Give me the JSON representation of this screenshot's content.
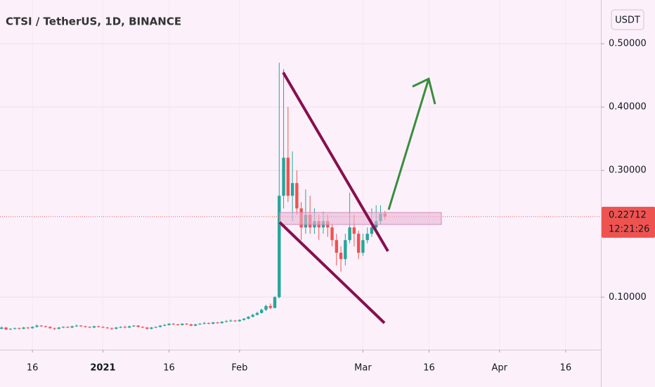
{
  "chart_data": {
    "type": "candlestick",
    "title": "CTSI / TetherUS, 1D, BINANCE",
    "currency": "USDT",
    "up_color": "#26a69a",
    "down_color": "#ef5350",
    "x": [
      "2020-12-09",
      "2020-12-10",
      "2020-12-11",
      "2020-12-12",
      "2020-12-13",
      "2020-12-14",
      "2020-12-15",
      "2020-12-16",
      "2020-12-17",
      "2020-12-18",
      "2020-12-19",
      "2020-12-20",
      "2020-12-21",
      "2020-12-22",
      "2020-12-23",
      "2020-12-24",
      "2020-12-25",
      "2020-12-26",
      "2020-12-27",
      "2020-12-28",
      "2020-12-29",
      "2020-12-30",
      "2020-12-31",
      "2021-01-01",
      "2021-01-02",
      "2021-01-03",
      "2021-01-04",
      "2021-01-05",
      "2021-01-06",
      "2021-01-07",
      "2021-01-08",
      "2021-01-09",
      "2021-01-10",
      "2021-01-11",
      "2021-01-12",
      "2021-01-13",
      "2021-01-14",
      "2021-01-15",
      "2021-01-16",
      "2021-01-17",
      "2021-01-18",
      "2021-01-19",
      "2021-01-20",
      "2021-01-21",
      "2021-01-22",
      "2021-01-23",
      "2021-01-24",
      "2021-01-25",
      "2021-01-26",
      "2021-01-27",
      "2021-01-28",
      "2021-01-29",
      "2021-01-30",
      "2021-01-31",
      "2021-02-01",
      "2021-02-02",
      "2021-02-03",
      "2021-02-04",
      "2021-02-05",
      "2021-02-06",
      "2021-02-07",
      "2021-02-08",
      "2021-02-09",
      "2021-02-10",
      "2021-02-11",
      "2021-02-12",
      "2021-02-13",
      "2021-02-14",
      "2021-02-15",
      "2021-02-16",
      "2021-02-17",
      "2021-02-18",
      "2021-02-19",
      "2021-02-20",
      "2021-02-21",
      "2021-02-22",
      "2021-02-23",
      "2021-02-24",
      "2021-02-25",
      "2021-02-26",
      "2021-02-27",
      "2021-02-28",
      "2021-03-01",
      "2021-03-02",
      "2021-03-03",
      "2021-03-04",
      "2021-03-05",
      "2021-03-06"
    ],
    "open": [
      0.05,
      0.052,
      0.049,
      0.05,
      0.051,
      0.05,
      0.052,
      0.051,
      0.053,
      0.055,
      0.054,
      0.053,
      0.051,
      0.05,
      0.052,
      0.053,
      0.052,
      0.054,
      0.055,
      0.054,
      0.053,
      0.052,
      0.054,
      0.053,
      0.052,
      0.051,
      0.05,
      0.052,
      0.053,
      0.052,
      0.054,
      0.055,
      0.053,
      0.052,
      0.05,
      0.052,
      0.053,
      0.055,
      0.056,
      0.058,
      0.057,
      0.056,
      0.058,
      0.057,
      0.055,
      0.057,
      0.058,
      0.059,
      0.058,
      0.06,
      0.059,
      0.061,
      0.062,
      0.063,
      0.062,
      0.064,
      0.066,
      0.069,
      0.072,
      0.075,
      0.08,
      0.086,
      0.083,
      0.1,
      0.26,
      0.32,
      0.26,
      0.28,
      0.24,
      0.21,
      0.23,
      0.21,
      0.22,
      0.21,
      0.22,
      0.21,
      0.19,
      0.17,
      0.16,
      0.19,
      0.21,
      0.2,
      0.17,
      0.19,
      0.2,
      0.21,
      0.22,
      0.232
    ],
    "high": [
      0.054,
      0.053,
      0.051,
      0.052,
      0.052,
      0.053,
      0.053,
      0.054,
      0.057,
      0.056,
      0.055,
      0.054,
      0.052,
      0.053,
      0.054,
      0.054,
      0.055,
      0.057,
      0.056,
      0.055,
      0.054,
      0.055,
      0.055,
      0.054,
      0.053,
      0.052,
      0.053,
      0.054,
      0.055,
      0.055,
      0.056,
      0.056,
      0.054,
      0.053,
      0.053,
      0.054,
      0.056,
      0.058,
      0.059,
      0.059,
      0.058,
      0.059,
      0.059,
      0.058,
      0.058,
      0.059,
      0.061,
      0.06,
      0.061,
      0.061,
      0.062,
      0.064,
      0.065,
      0.064,
      0.065,
      0.067,
      0.07,
      0.074,
      0.077,
      0.082,
      0.088,
      0.09,
      0.102,
      0.47,
      0.46,
      0.4,
      0.33,
      0.3,
      0.25,
      0.27,
      0.26,
      0.24,
      0.23,
      0.235,
      0.23,
      0.215,
      0.2,
      0.18,
      0.2,
      0.265,
      0.23,
      0.205,
      0.2,
      0.21,
      0.24,
      0.245,
      0.245,
      0.236
    ],
    "low": [
      0.049,
      0.048,
      0.048,
      0.049,
      0.049,
      0.049,
      0.05,
      0.05,
      0.052,
      0.053,
      0.052,
      0.05,
      0.048,
      0.049,
      0.051,
      0.051,
      0.051,
      0.053,
      0.053,
      0.052,
      0.051,
      0.051,
      0.052,
      0.051,
      0.05,
      0.048,
      0.049,
      0.051,
      0.051,
      0.051,
      0.053,
      0.052,
      0.051,
      0.049,
      0.049,
      0.051,
      0.052,
      0.054,
      0.055,
      0.056,
      0.055,
      0.055,
      0.056,
      0.054,
      0.054,
      0.056,
      0.057,
      0.057,
      0.057,
      0.058,
      0.058,
      0.06,
      0.061,
      0.061,
      0.061,
      0.063,
      0.065,
      0.068,
      0.071,
      0.074,
      0.078,
      0.081,
      0.082,
      0.098,
      0.24,
      0.25,
      0.22,
      0.23,
      0.19,
      0.2,
      0.2,
      0.2,
      0.19,
      0.2,
      0.195,
      0.18,
      0.15,
      0.14,
      0.15,
      0.185,
      0.18,
      0.16,
      0.165,
      0.185,
      0.195,
      0.205,
      0.215,
      0.222
    ],
    "close": [
      0.052,
      0.049,
      0.05,
      0.051,
      0.05,
      0.052,
      0.051,
      0.053,
      0.055,
      0.054,
      0.053,
      0.051,
      0.05,
      0.052,
      0.053,
      0.052,
      0.054,
      0.055,
      0.054,
      0.053,
      0.052,
      0.054,
      0.053,
      0.052,
      0.051,
      0.05,
      0.052,
      0.053,
      0.052,
      0.054,
      0.055,
      0.053,
      0.052,
      0.05,
      0.052,
      0.053,
      0.055,
      0.056,
      0.058,
      0.057,
      0.056,
      0.058,
      0.057,
      0.055,
      0.057,
      0.058,
      0.059,
      0.058,
      0.06,
      0.059,
      0.061,
      0.062,
      0.063,
      0.062,
      0.064,
      0.066,
      0.069,
      0.072,
      0.075,
      0.08,
      0.086,
      0.083,
      0.1,
      0.26,
      0.32,
      0.26,
      0.28,
      0.24,
      0.21,
      0.23,
      0.21,
      0.22,
      0.21,
      0.22,
      0.21,
      0.19,
      0.17,
      0.16,
      0.19,
      0.21,
      0.2,
      0.17,
      0.19,
      0.2,
      0.21,
      0.22,
      0.232,
      0.22712
    ],
    "xlim": [
      "2020-12-08",
      "2021-04-24"
    ],
    "xticks": [
      {
        "value": "2020-12-16",
        "label": "16"
      },
      {
        "value": "2021-01-01",
        "label": "2021"
      },
      {
        "value": "2021-01-16",
        "label": "16"
      },
      {
        "value": "2021-02-01",
        "label": "Feb"
      },
      {
        "value": "2021-03-01",
        "label": "Mar"
      },
      {
        "value": "2021-03-16",
        "label": "16"
      },
      {
        "value": "2021-04-01",
        "label": "Apr"
      },
      {
        "value": "2021-04-16",
        "label": "16"
      }
    ],
    "ylim": [
      0.017,
      0.569
    ],
    "yticks": [
      {
        "value": 0.1,
        "label": "0.10000"
      },
      {
        "value": 0.3,
        "label": "0.30000"
      },
      {
        "value": 0.4,
        "label": "0.40000"
      },
      {
        "value": 0.5,
        "label": "0.50000"
      }
    ],
    "last_price": 0.22712,
    "countdown": "12:21:26",
    "grid": true
  }
}
